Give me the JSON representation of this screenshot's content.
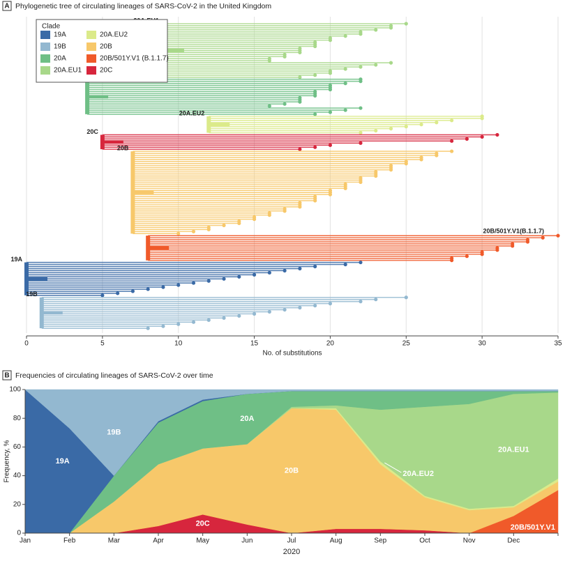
{
  "chart_data": [
    {
      "type": "tree",
      "panel": "A",
      "title": "Phylogenetic tree of circulating lineages of SARS-CoV-2 in the United Kingdom",
      "xlabel": "No. of substitutions",
      "xlim": [
        0,
        35
      ],
      "xticks": [
        0,
        5,
        10,
        15,
        20,
        25,
        30,
        35
      ],
      "grid": true,
      "legend_title": "Clade",
      "clades": [
        {
          "name": "19A",
          "color": "#3a6aa6"
        },
        {
          "name": "19B",
          "color": "#93b8d0"
        },
        {
          "name": "20A",
          "color": "#6fbf86"
        },
        {
          "name": "20A.EU1",
          "color": "#a8d88a"
        },
        {
          "name": "20A.EU2",
          "color": "#dbea8a"
        },
        {
          "name": "20B",
          "color": "#f7c86a"
        },
        {
          "name": "20B/501Y.V1 (B.1.1.7)",
          "color": "#f05a2a"
        },
        {
          "name": "20C",
          "color": "#d7263d"
        }
      ],
      "groups": [
        {
          "clade": "20A.EU1",
          "color": "#a8d88a",
          "root": 9,
          "tips": [
            25,
            24,
            24,
            23,
            22,
            22,
            21,
            20,
            20,
            19,
            19,
            19,
            18,
            18,
            18,
            17,
            17,
            16,
            16,
            24,
            23,
            22,
            21,
            20,
            20,
            19,
            18
          ]
        },
        {
          "clade": "20A",
          "color": "#6fbf86",
          "root": 4,
          "tips": [
            22,
            22,
            21,
            20,
            20,
            20,
            19,
            19,
            19,
            18,
            18,
            18,
            17,
            16,
            22,
            21,
            20,
            19
          ]
        },
        {
          "clade": "20A.EU2",
          "color": "#dbea8a",
          "root": 12,
          "tips": [
            30,
            30,
            28,
            27,
            26,
            25,
            24,
            23,
            22
          ]
        },
        {
          "clade": "20C",
          "color": "#d7263d",
          "root": 5,
          "tips": [
            31,
            30,
            29,
            28,
            22,
            20,
            19,
            18
          ]
        },
        {
          "clade": "20B",
          "color": "#f7c86a",
          "root": 7,
          "tips": [
            28,
            27,
            27,
            26,
            26,
            25,
            25,
            24,
            24,
            24,
            23,
            23,
            23,
            22,
            22,
            22,
            21,
            21,
            21,
            20,
            20,
            20,
            19,
            19,
            19,
            18,
            18,
            18,
            17,
            17,
            16,
            16,
            15,
            15,
            14,
            14,
            13,
            12,
            12,
            11,
            10
          ]
        },
        {
          "clade": "20B/501Y.V1(B.1.1.7)",
          "color": "#f05a2a",
          "root": 8,
          "tips": [
            35,
            34,
            33,
            33,
            32,
            32,
            31,
            31,
            30,
            30,
            29,
            28,
            28
          ]
        },
        {
          "clade": "19A",
          "color": "#3a6aa6",
          "root": 0,
          "tips": [
            22,
            21,
            19,
            18,
            17,
            16,
            15,
            14,
            13,
            12,
            11,
            10,
            9,
            8,
            7,
            6,
            5
          ]
        },
        {
          "clade": "19B",
          "color": "#93b8d0",
          "root": 1,
          "tips": [
            25,
            23,
            22,
            20,
            19,
            18,
            17,
            16,
            15,
            14,
            13,
            12,
            11,
            10,
            9,
            8
          ]
        }
      ]
    },
    {
      "type": "stacked_area",
      "panel": "B",
      "title": "Frequencies of circulating lineages of SARS-CoV-2 over time",
      "xlabel": "2020",
      "ylabel": "Frequency, %",
      "ylim": [
        0,
        100
      ],
      "yticks": [
        0,
        20,
        40,
        60,
        80,
        100
      ],
      "categories": [
        "Jan",
        "Feb",
        "Mar",
        "Apr",
        "May",
        "Jun",
        "Jul",
        "Aug",
        "Sep",
        "Oct",
        "Nov",
        "Dec",
        null
      ],
      "series": [
        {
          "name": "20C",
          "color": "#d7263d",
          "values": [
            0,
            0,
            0,
            5,
            13,
            6,
            0,
            3,
            3,
            2,
            0,
            0,
            0
          ]
        },
        {
          "name": "20B/501Y.V1",
          "color": "#f05a2a",
          "values": [
            0,
            0,
            0,
            0,
            0,
            0,
            0,
            0,
            0,
            0,
            0,
            12,
            30
          ]
        },
        {
          "name": "20B",
          "color": "#f7c86a",
          "values": [
            0,
            0,
            22,
            43,
            46,
            56,
            87,
            83,
            45,
            23,
            16,
            6,
            6
          ]
        },
        {
          "name": "20A.EU2",
          "color": "#dbea8a",
          "values": [
            0,
            0,
            0,
            0,
            0,
            0,
            0,
            1,
            2,
            1,
            1,
            1,
            2
          ]
        },
        {
          "name": "20A.EU1",
          "color": "#a8d88a",
          "values": [
            0,
            0,
            0,
            0,
            0,
            0,
            1,
            2,
            36,
            62,
            73,
            78,
            60
          ]
        },
        {
          "name": "20A",
          "color": "#6fbf86",
          "values": [
            0,
            0,
            18,
            29,
            33,
            35,
            11,
            10,
            13,
            11,
            9,
            2,
            1
          ]
        },
        {
          "name": "19A",
          "color": "#3a6aa6",
          "values": [
            100,
            73,
            0,
            1,
            1,
            0,
            0,
            0,
            0,
            0,
            0,
            0,
            0
          ]
        },
        {
          "name": "19B",
          "color": "#93b8d0",
          "values": [
            0,
            27,
            60,
            22,
            7,
            3,
            1,
            1,
            1,
            1,
            1,
            1,
            1
          ]
        }
      ]
    }
  ]
}
